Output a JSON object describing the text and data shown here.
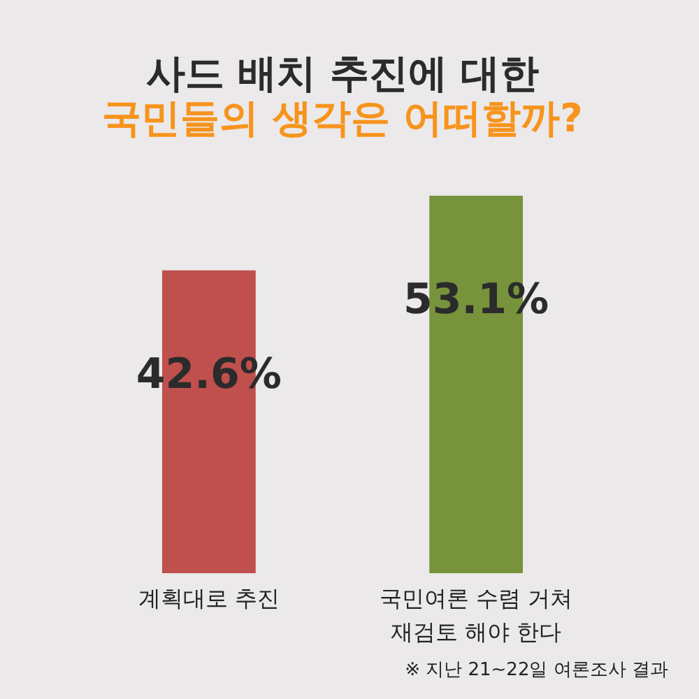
{
  "chart_data": {
    "type": "bar",
    "title": "사드 배치 추진에 대한",
    "subtitle": "국민들의 생각은 어떠할까?",
    "categories": [
      "계획대로 추진",
      "국민여론 수렴 거쳐 재검토 해야 한다"
    ],
    "values": [
      42.6,
      53.1
    ],
    "colors": [
      "#c0504d",
      "#77933c"
    ],
    "value_labels": [
      "42.6%",
      "53.1%"
    ],
    "annotations": [
      "※ 지난 21~22일 여론조사 결과"
    ]
  }
}
